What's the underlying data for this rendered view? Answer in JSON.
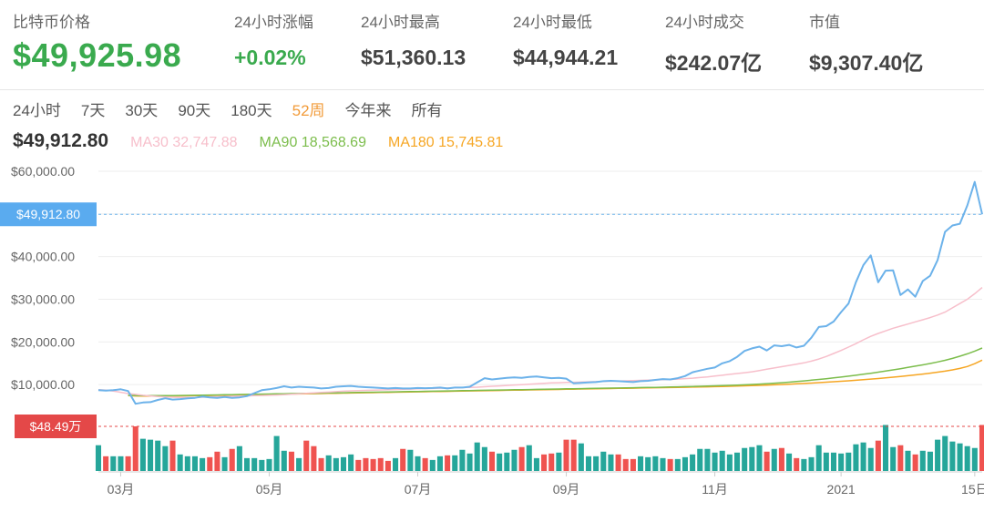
{
  "stats": {
    "price": {
      "label": "比特币价格",
      "value": "$49,925.98"
    },
    "change": {
      "label": "24小时涨幅",
      "value": "+0.02%"
    },
    "high": {
      "label": "24小时最高",
      "value": "$51,360.13"
    },
    "low": {
      "label": "24小时最低",
      "value": "$44,944.21"
    },
    "volume": {
      "label": "24小时成交",
      "value": "$242.07亿"
    },
    "market_cap": {
      "label": "市值",
      "value": "$9,307.40亿"
    }
  },
  "periods": [
    "24小时",
    "7天",
    "30天",
    "90天",
    "180天",
    "52周",
    "今年来",
    "所有"
  ],
  "active_period": "52周",
  "current_price": "$49,912.80",
  "ma": {
    "ma30": {
      "label": "MA30",
      "value": "32,747.88"
    },
    "ma90": {
      "label": "MA90",
      "value": "18,568.69"
    },
    "ma180": {
      "label": "MA180",
      "value": "15,745.81"
    }
  },
  "colors": {
    "price_line": "#6cb2ea",
    "ma30": "#f7bfcb",
    "ma90": "#7cbd4c",
    "ma180": "#f6a623",
    "volume_up": "#26a69a",
    "volume_down": "#ef5350",
    "price_green": "#3aaa4e",
    "active_period": "#f29b39"
  },
  "chart_data": {
    "type": "line",
    "y_ticks": [
      "$60,000.00",
      "$50,000.00",
      "$40,000.00",
      "$30,000.00",
      "$20,000.00",
      "$10,000.00"
    ],
    "y_tick_values": [
      60000,
      50000,
      40000,
      30000,
      20000,
      10000
    ],
    "ylim": [
      0,
      60000
    ],
    "x_labels": [
      "03月",
      "05月",
      "07月",
      "09月",
      "11月",
      "2021",
      "15日"
    ],
    "x_label_positions": [
      3,
      23,
      43,
      63,
      83,
      100,
      118
    ],
    "x_count": 120,
    "price_marker": {
      "label": "$49,912.80",
      "value": 49912.8
    },
    "volume_marker": {
      "label": "$48.49万",
      "value": 48.49
    },
    "grid": true,
    "series": [
      {
        "name": "价格",
        "values": [
          8700,
          8600,
          8700,
          8900,
          8500,
          5500,
          5800,
          5900,
          6400,
          6800,
          6500,
          6600,
          6800,
          6900,
          7200,
          7000,
          6900,
          7100,
          6900,
          7000,
          7300,
          8000,
          8700,
          8900,
          9200,
          9600,
          9300,
          9500,
          9400,
          9300,
          9100,
          9200,
          9500,
          9600,
          9700,
          9500,
          9400,
          9300,
          9200,
          9100,
          9200,
          9100,
          9100,
          9200,
          9150,
          9200,
          9300,
          9100,
          9300,
          9300,
          9500,
          10500,
          11500,
          11200,
          11400,
          11600,
          11700,
          11600,
          11800,
          11900,
          11700,
          11500,
          11600,
          11400,
          10300,
          10400,
          10500,
          10600,
          10800,
          10900,
          10800,
          10700,
          10600,
          10800,
          10900,
          11100,
          11300,
          11200,
          11500,
          12000,
          12900,
          13300,
          13700,
          14000,
          15000,
          15500,
          16500,
          17900,
          18500,
          18900,
          18000,
          19200,
          19000,
          19300,
          18700,
          19100,
          21000,
          23500,
          23700,
          24800,
          27000,
          29000,
          34000,
          38000,
          40300,
          34000,
          36700,
          36800,
          31000,
          32300,
          30600,
          34300,
          35500,
          39200,
          45800,
          47300,
          47700,
          52000,
          57500,
          49912.8
        ]
      },
      {
        "name": "MA30",
        "values": [
          8800,
          8700,
          8500,
          8200,
          7900,
          7700,
          7500,
          7350,
          7200,
          7100,
          7050,
          7000,
          7000,
          7000,
          7050,
          7100,
          7150,
          7200,
          7250,
          7300,
          7350,
          7400,
          7450,
          7500,
          7550,
          7650,
          7750,
          7850,
          7950,
          8050,
          8150,
          8250,
          8350,
          8450,
          8550,
          8600,
          8650,
          8700,
          8750,
          8800,
          8850,
          8900,
          8950,
          9000,
          9050,
          9100,
          9150,
          9200,
          9250,
          9300,
          9350,
          9400,
          9500,
          9600,
          9700,
          9800,
          9900,
          10000,
          10100,
          10200,
          10300,
          10400,
          10450,
          10500,
          10550,
          10600,
          10650,
          10700,
          10750,
          10800,
          10850,
          10900,
          10950,
          11000,
          11050,
          11100,
          11150,
          11200,
          11300,
          11400,
          11500,
          11650,
          11800,
          12000,
          12200,
          12400,
          12600,
          12800,
          13000,
          13300,
          13600,
          13900,
          14200,
          14500,
          14800,
          15100,
          15500,
          16000,
          16600,
          17300,
          18000,
          18800,
          19600,
          20500,
          21300,
          22000,
          22600,
          23200,
          23700,
          24200,
          24700,
          25200,
          25700,
          26300,
          27000,
          28000,
          29000,
          30000,
          31300,
          32747.88
        ]
      },
      {
        "name": "MA90",
        "values": [
          null,
          null,
          null,
          null,
          7500,
          7450,
          7400,
          7400,
          7400,
          7420,
          7440,
          7460,
          7480,
          7500,
          7530,
          7560,
          7590,
          7620,
          7650,
          7680,
          7710,
          7740,
          7770,
          7800,
          7830,
          7860,
          7890,
          7920,
          7950,
          7980,
          8010,
          8040,
          8070,
          8100,
          8130,
          8160,
          8190,
          8220,
          8250,
          8280,
          8310,
          8340,
          8370,
          8400,
          8430,
          8460,
          8490,
          8520,
          8550,
          8580,
          8610,
          8640,
          8670,
          8700,
          8730,
          8760,
          8790,
          8820,
          8850,
          8880,
          8910,
          8940,
          8970,
          9000,
          9030,
          9060,
          9090,
          9120,
          9150,
          9180,
          9210,
          9240,
          9270,
          9300,
          9330,
          9360,
          9400,
          9440,
          9480,
          9520,
          9560,
          9610,
          9660,
          9710,
          9760,
          9820,
          9880,
          9950,
          10030,
          10120,
          10220,
          10330,
          10450,
          10580,
          10720,
          10870,
          11030,
          11200,
          11380,
          11570,
          11770,
          11980,
          12200,
          12430,
          12670,
          12920,
          13180,
          13450,
          13730,
          14020,
          14320,
          14630,
          14950,
          15300,
          15700,
          16150,
          16650,
          17200,
          17850,
          18568.69
        ]
      },
      {
        "name": "MA180",
        "values": [
          null,
          null,
          null,
          null,
          7400,
          7350,
          7300,
          7300,
          7300,
          7320,
          7340,
          7360,
          7380,
          7400,
          7430,
          7460,
          7490,
          7520,
          7550,
          7580,
          7610,
          7640,
          7670,
          7700,
          7730,
          7760,
          7790,
          7820,
          7850,
          7880,
          7910,
          7940,
          7970,
          8000,
          8030,
          8060,
          8090,
          8120,
          8150,
          8180,
          8210,
          8240,
          8270,
          8300,
          8330,
          8360,
          8390,
          8420,
          8450,
          8480,
          8510,
          8540,
          8570,
          8600,
          8630,
          8660,
          8690,
          8720,
          8750,
          8780,
          8810,
          8840,
          8870,
          8900,
          8930,
          8960,
          8990,
          9020,
          9050,
          9080,
          9110,
          9140,
          9170,
          9200,
          9230,
          9260,
          9290,
          9320,
          9350,
          9380,
          9410,
          9450,
          9490,
          9530,
          9570,
          9610,
          9660,
          9710,
          9760,
          9820,
          9880,
          9950,
          10020,
          10100,
          10180,
          10270,
          10360,
          10460,
          10560,
          10670,
          10780,
          10900,
          11020,
          11150,
          11290,
          11430,
          11580,
          11740,
          11910,
          12090,
          12280,
          12480,
          12690,
          12910,
          13150,
          13450,
          13800,
          14250,
          14900,
          15745.81
        ]
      },
      {
        "name": "成交量",
        "values": [
          28,
          16,
          16,
          16,
          16,
          48.5,
          35,
          34,
          33,
          27,
          33,
          18,
          16,
          16,
          14,
          15,
          21,
          15,
          24,
          27,
          14,
          14,
          12,
          13,
          38,
          22,
          21,
          14,
          33,
          27,
          14,
          17,
          14,
          15,
          18,
          12,
          14,
          13,
          14,
          11,
          14,
          24,
          23,
          16,
          14,
          12,
          16,
          17,
          17,
          23,
          19,
          31,
          26,
          21,
          19,
          20,
          23,
          26,
          28,
          14,
          18,
          19,
          20,
          34,
          34,
          30,
          16,
          16,
          21,
          18,
          18,
          13,
          13,
          16,
          15,
          16,
          14,
          13,
          13,
          15,
          18,
          24,
          24,
          20,
          22,
          18,
          20,
          25,
          26,
          28,
          21,
          24,
          25,
          19,
          14,
          13,
          15,
          28,
          20,
          20,
          19,
          20,
          29,
          31,
          25,
          33,
          50,
          26,
          28,
          22,
          18,
          22,
          21,
          34,
          38,
          32,
          30,
          27,
          25,
          50
        ]
      }
    ]
  }
}
